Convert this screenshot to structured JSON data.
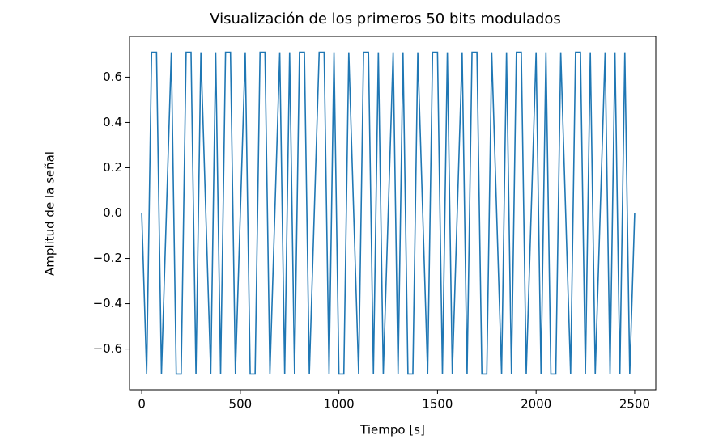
{
  "chart_data": {
    "type": "line",
    "title": "Visualización de los primeros 50 bits modulados",
    "xlabel": "Tiempo [s]",
    "ylabel": "Amplitud de la señal",
    "x": [
      0,
      25,
      50,
      75,
      100,
      125,
      150,
      175,
      200,
      225,
      250,
      275,
      300,
      325,
      350,
      375,
      400,
      425,
      450,
      475,
      500,
      525,
      550,
      575,
      600,
      625,
      650,
      675,
      700,
      725,
      750,
      775,
      800,
      825,
      850,
      875,
      900,
      925,
      950,
      975,
      1000,
      1025,
      1050,
      1075,
      1100,
      1125,
      1150,
      1175,
      1200,
      1225,
      1250,
      1275,
      1300,
      1325,
      1350,
      1375,
      1400,
      1425,
      1450,
      1475,
      1500,
      1525,
      1550,
      1575,
      1600,
      1625,
      1650,
      1675,
      1700,
      1725,
      1750,
      1775,
      1800,
      1825,
      1850,
      1875,
      1900,
      1925,
      1950,
      1975,
      2000,
      2025,
      2050,
      2075,
      2100,
      2125,
      2150,
      2175,
      2200,
      2225,
      2250,
      2275,
      2300,
      2325,
      2350,
      2375,
      2400,
      2425,
      2450,
      2475,
      2500
    ],
    "series": [
      {
        "color": "#1f77b4",
        "values": [
          0,
          -0.71,
          0.71,
          0.71,
          -0.71,
          0,
          0.71,
          -0.71,
          -0.71,
          0.71,
          0.71,
          -0.71,
          0.71,
          0,
          -0.71,
          0.71,
          -0.71,
          0.71,
          0.71,
          -0.71,
          0,
          0.71,
          -0.71,
          -0.71,
          0.71,
          0.71,
          -0.71,
          0,
          0.71,
          -0.71,
          0.71,
          -0.71,
          0.71,
          0.71,
          -0.71,
          0,
          0.71,
          0.71,
          -0.71,
          0.71,
          -0.71,
          -0.71,
          0.71,
          0,
          -0.71,
          0.71,
          0.71,
          -0.71,
          0.71,
          -0.71,
          0,
          0.71,
          -0.71,
          0.71,
          -0.71,
          -0.71,
          0.71,
          0,
          -0.71,
          0.71,
          0.71,
          -0.71,
          0.71,
          -0.71,
          0,
          0.71,
          -0.71,
          0.71,
          0.71,
          -0.71,
          -0.71,
          0.71,
          0,
          -0.71,
          0.71,
          -0.71,
          0.71,
          0.71,
          -0.71,
          0,
          0.71,
          -0.71,
          0.71,
          -0.71,
          -0.71,
          0.71,
          0,
          -0.71,
          0.71,
          0.71,
          -0.71,
          0.71,
          -0.71,
          0,
          0.71,
          -0.71,
          0.71,
          -0.71,
          0.71,
          -0.71,
          0
        ]
      }
    ],
    "xlim": [
      -62,
      2607
    ],
    "ylim": [
      -0.78,
      0.78
    ],
    "xticks": [
      0,
      500,
      1000,
      1500,
      2000,
      2500
    ],
    "yticks": [
      {
        "value": -0.6,
        "label": "−0.6"
      },
      {
        "value": -0.4,
        "label": "−0.4"
      },
      {
        "value": -0.2,
        "label": "−0.2"
      },
      {
        "value": 0.0,
        "label": "0.0"
      },
      {
        "value": 0.2,
        "label": "0.2"
      },
      {
        "value": 0.4,
        "label": "0.4"
      },
      {
        "value": 0.6,
        "label": "0.6"
      }
    ]
  }
}
